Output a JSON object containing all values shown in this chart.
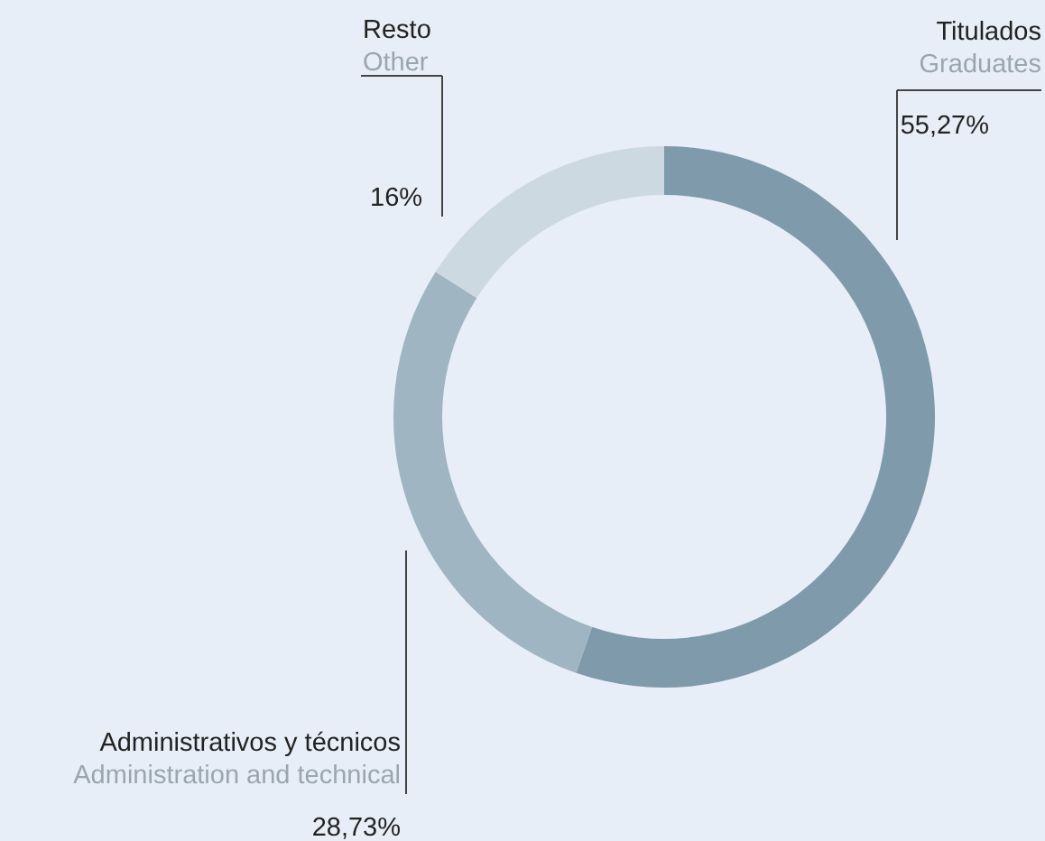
{
  "chart_data": {
    "type": "donut",
    "categories": [
      "Titulados\nGraduates",
      "Administrativos y técnicos\nAdministration and technical",
      "Resto\nOther"
    ],
    "values": [
      55.27,
      28.73,
      16
    ],
    "colors": [
      "#7f9aaa",
      "#9fb5c2",
      "#ccd9e0"
    ],
    "value_labels": [
      "55,27%",
      "28,73%",
      "16%"
    ]
  }
}
